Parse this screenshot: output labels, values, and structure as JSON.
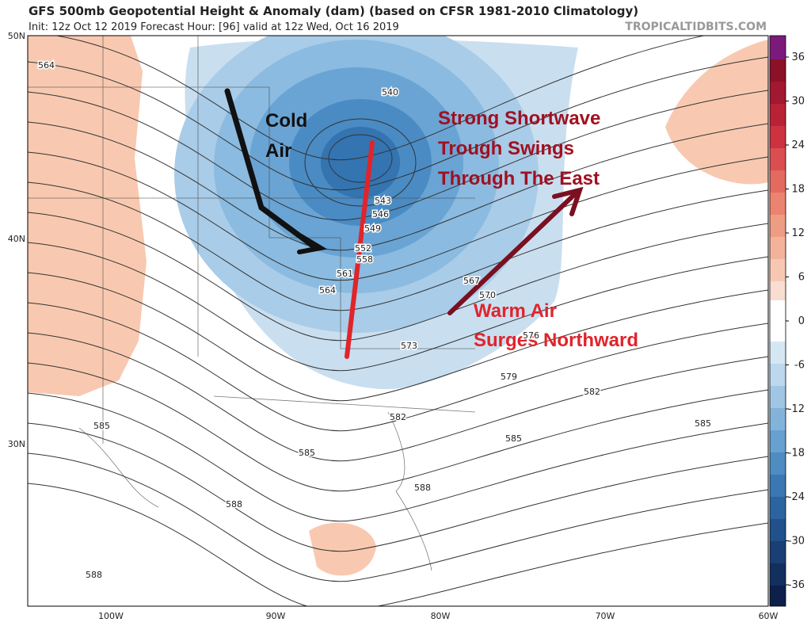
{
  "header": {
    "title": "GFS 500mb Geopotential Height & Anomaly (dam) (based on CFSR 1981-2010 Climatology)",
    "subtitle": "Init: 12z Oct 12 2019   Forecast Hour: [96]   valid at 12z Wed, Oct 16 2019",
    "credit": "TROPICALTIDBITS.COM"
  },
  "map": {
    "lat_labels": [
      "50N",
      "40N",
      "30N"
    ],
    "lon_labels": [
      "100W",
      "90W",
      "80W",
      "70W",
      "60W"
    ],
    "contour_labels": [
      564,
      540,
      543,
      546,
      549,
      552,
      558,
      561,
      564,
      567,
      570,
      573,
      576,
      579,
      582,
      582,
      585,
      585,
      585,
      585,
      588,
      588,
      588
    ]
  },
  "annotations": {
    "cold": [
      "Cold",
      "Air"
    ],
    "shortwave": [
      "Strong Shortwave",
      "Trough Swings",
      "Through The East"
    ],
    "warm": [
      "Warm Air",
      "Surges Northward"
    ]
  },
  "colorbar": {
    "ticks": [
      36,
      30,
      24,
      18,
      12,
      6,
      0,
      -6,
      -12,
      -18,
      -24,
      -30,
      -36
    ]
  }
}
